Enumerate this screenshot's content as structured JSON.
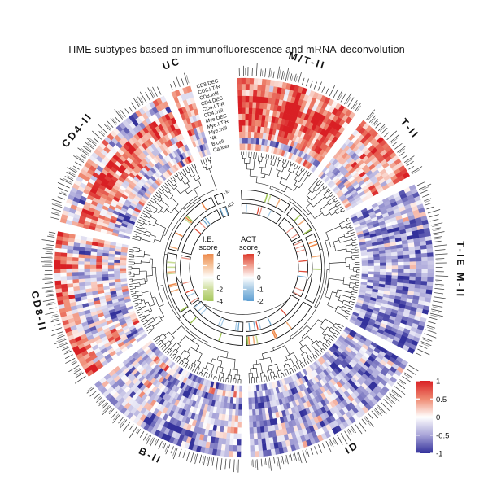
{
  "title": "TIME subtypes based on immunofluorescence and mRNA-deconvolution",
  "chart_data": {
    "type": "heatmap",
    "layout": "circular",
    "title": "TIME subtypes based on immunofluorescence and mRNA-deconvolution",
    "rings_outer_to_inner": [
      "CD8.DEC",
      "CD8.I/T-R",
      "CD8.Infil",
      "CD4.DEC",
      "CD4.I/T-R",
      "CD4.Infil",
      "Mye.DEC",
      "Mye.I/T-R",
      "Mye.Infil",
      "NK",
      "B.cell",
      "Cancer"
    ],
    "value_range": [
      -1,
      1
    ],
    "value_colormap_stops": [
      [
        -1,
        "#33319b"
      ],
      [
        -0.5,
        "#a8a4d8"
      ],
      [
        0,
        "#ffffff"
      ],
      [
        0.5,
        "#ef8971"
      ],
      [
        1,
        "#d91f24"
      ]
    ],
    "sectors": [
      {
        "name": "M/T-II",
        "start_deg": 358,
        "end_deg": 396,
        "n_samples": 30,
        "noise": 0.45,
        "ring_red_bias": [
          0.45,
          0.5,
          0.55,
          0.85,
          0.8,
          0.8,
          0.75,
          0.7,
          0.6,
          0.35,
          -0.55,
          0.15
        ]
      },
      {
        "name": "T-II",
        "start_deg": 39,
        "end_deg": 61,
        "n_samples": 18,
        "noise": 0.5,
        "ring_red_bias": [
          0.6,
          0.5,
          0.4,
          0.1,
          -0.1,
          -0.2,
          0.3,
          0.0,
          -0.2,
          -0.3,
          -0.5,
          -0.1
        ]
      },
      {
        "name": "T-IE M-II",
        "start_deg": 64,
        "end_deg": 117,
        "n_samples": 42,
        "noise": 0.45,
        "ring_red_bias": [
          -0.55,
          -0.5,
          -0.6,
          -0.45,
          -0.55,
          -0.6,
          -0.4,
          -0.5,
          -0.55,
          -0.6,
          -0.55,
          -0.35
        ]
      },
      {
        "name": "ID",
        "start_deg": 120,
        "end_deg": 178,
        "n_samples": 46,
        "noise": 0.5,
        "ring_red_bias": [
          -0.45,
          -0.4,
          -0.5,
          -0.35,
          -0.45,
          -0.5,
          -0.4,
          -0.35,
          -0.45,
          -0.5,
          -0.4,
          -0.3
        ]
      },
      {
        "name": "B-II",
        "start_deg": 181,
        "end_deg": 232,
        "n_samples": 41,
        "noise": 0.55,
        "ring_red_bias": [
          -0.5,
          -0.45,
          -0.4,
          -0.2,
          -0.1,
          -0.3,
          -0.15,
          -0.25,
          -0.4,
          -0.45,
          0.1,
          -0.3
        ]
      },
      {
        "name": "CD8-II",
        "start_deg": 235,
        "end_deg": 281,
        "n_samples": 37,
        "noise": 0.6,
        "ring_red_bias": [
          0.45,
          0.5,
          0.3,
          -0.15,
          -0.3,
          -0.1,
          0.1,
          0.2,
          -0.2,
          -0.35,
          -0.25,
          0.05
        ]
      },
      {
        "name": "CD4-II",
        "start_deg": 284,
        "end_deg": 335,
        "n_samples": 41,
        "noise": 0.55,
        "ring_red_bias": [
          0.1,
          -0.05,
          -0.15,
          0.7,
          0.65,
          0.55,
          0.4,
          0.3,
          0.15,
          -0.15,
          -0.35,
          0.05
        ]
      },
      {
        "name": "UC",
        "start_deg": 337.5,
        "end_deg": 343.5,
        "n_samples": 5,
        "noise": 0.5,
        "ring_red_bias": [
          0.3,
          -0.1,
          0.2,
          0.5,
          0.3,
          -0.2,
          0.3,
          0.1,
          -0.3,
          -0.1,
          -0.5,
          -0.2
        ]
      }
    ],
    "score_rings": {
      "outer_label": "I.E.",
      "inner_label": "ACT",
      "ie_tick_colors": [
        "#ef8a4a",
        "#f3ae7a",
        "#9fc455",
        "#c8dd95"
      ],
      "act_tick_colors": [
        "#df4b38",
        "#eb9486",
        "#6fa8d0",
        "#aacde8"
      ]
    }
  },
  "legends": {
    "ie": {
      "title_line1": "I.E.",
      "title_line2": "score",
      "ticks": [
        "4",
        "2",
        "0",
        "-2",
        "-4"
      ],
      "gradient": [
        "#ed8a4c",
        "#f6c49c",
        "#ffffff",
        "#cede9c",
        "#a6c85d"
      ]
    },
    "act": {
      "title_line1": "ACT",
      "title_line2": "score",
      "ticks": [
        "2",
        "1",
        "0",
        "-1",
        "-2"
      ],
      "gradient": [
        "#dd3b2d",
        "#f0a091",
        "#ffffff",
        "#a5c9e4",
        "#5f9fd3"
      ]
    },
    "heatmap_scale": {
      "ticks": [
        "1",
        "0.5",
        "0",
        "-0.5",
        "-1"
      ],
      "gradient": [
        "#d91f24",
        "#ef8971",
        "#ffffff",
        "#a8a4d8",
        "#33319b"
      ]
    }
  }
}
